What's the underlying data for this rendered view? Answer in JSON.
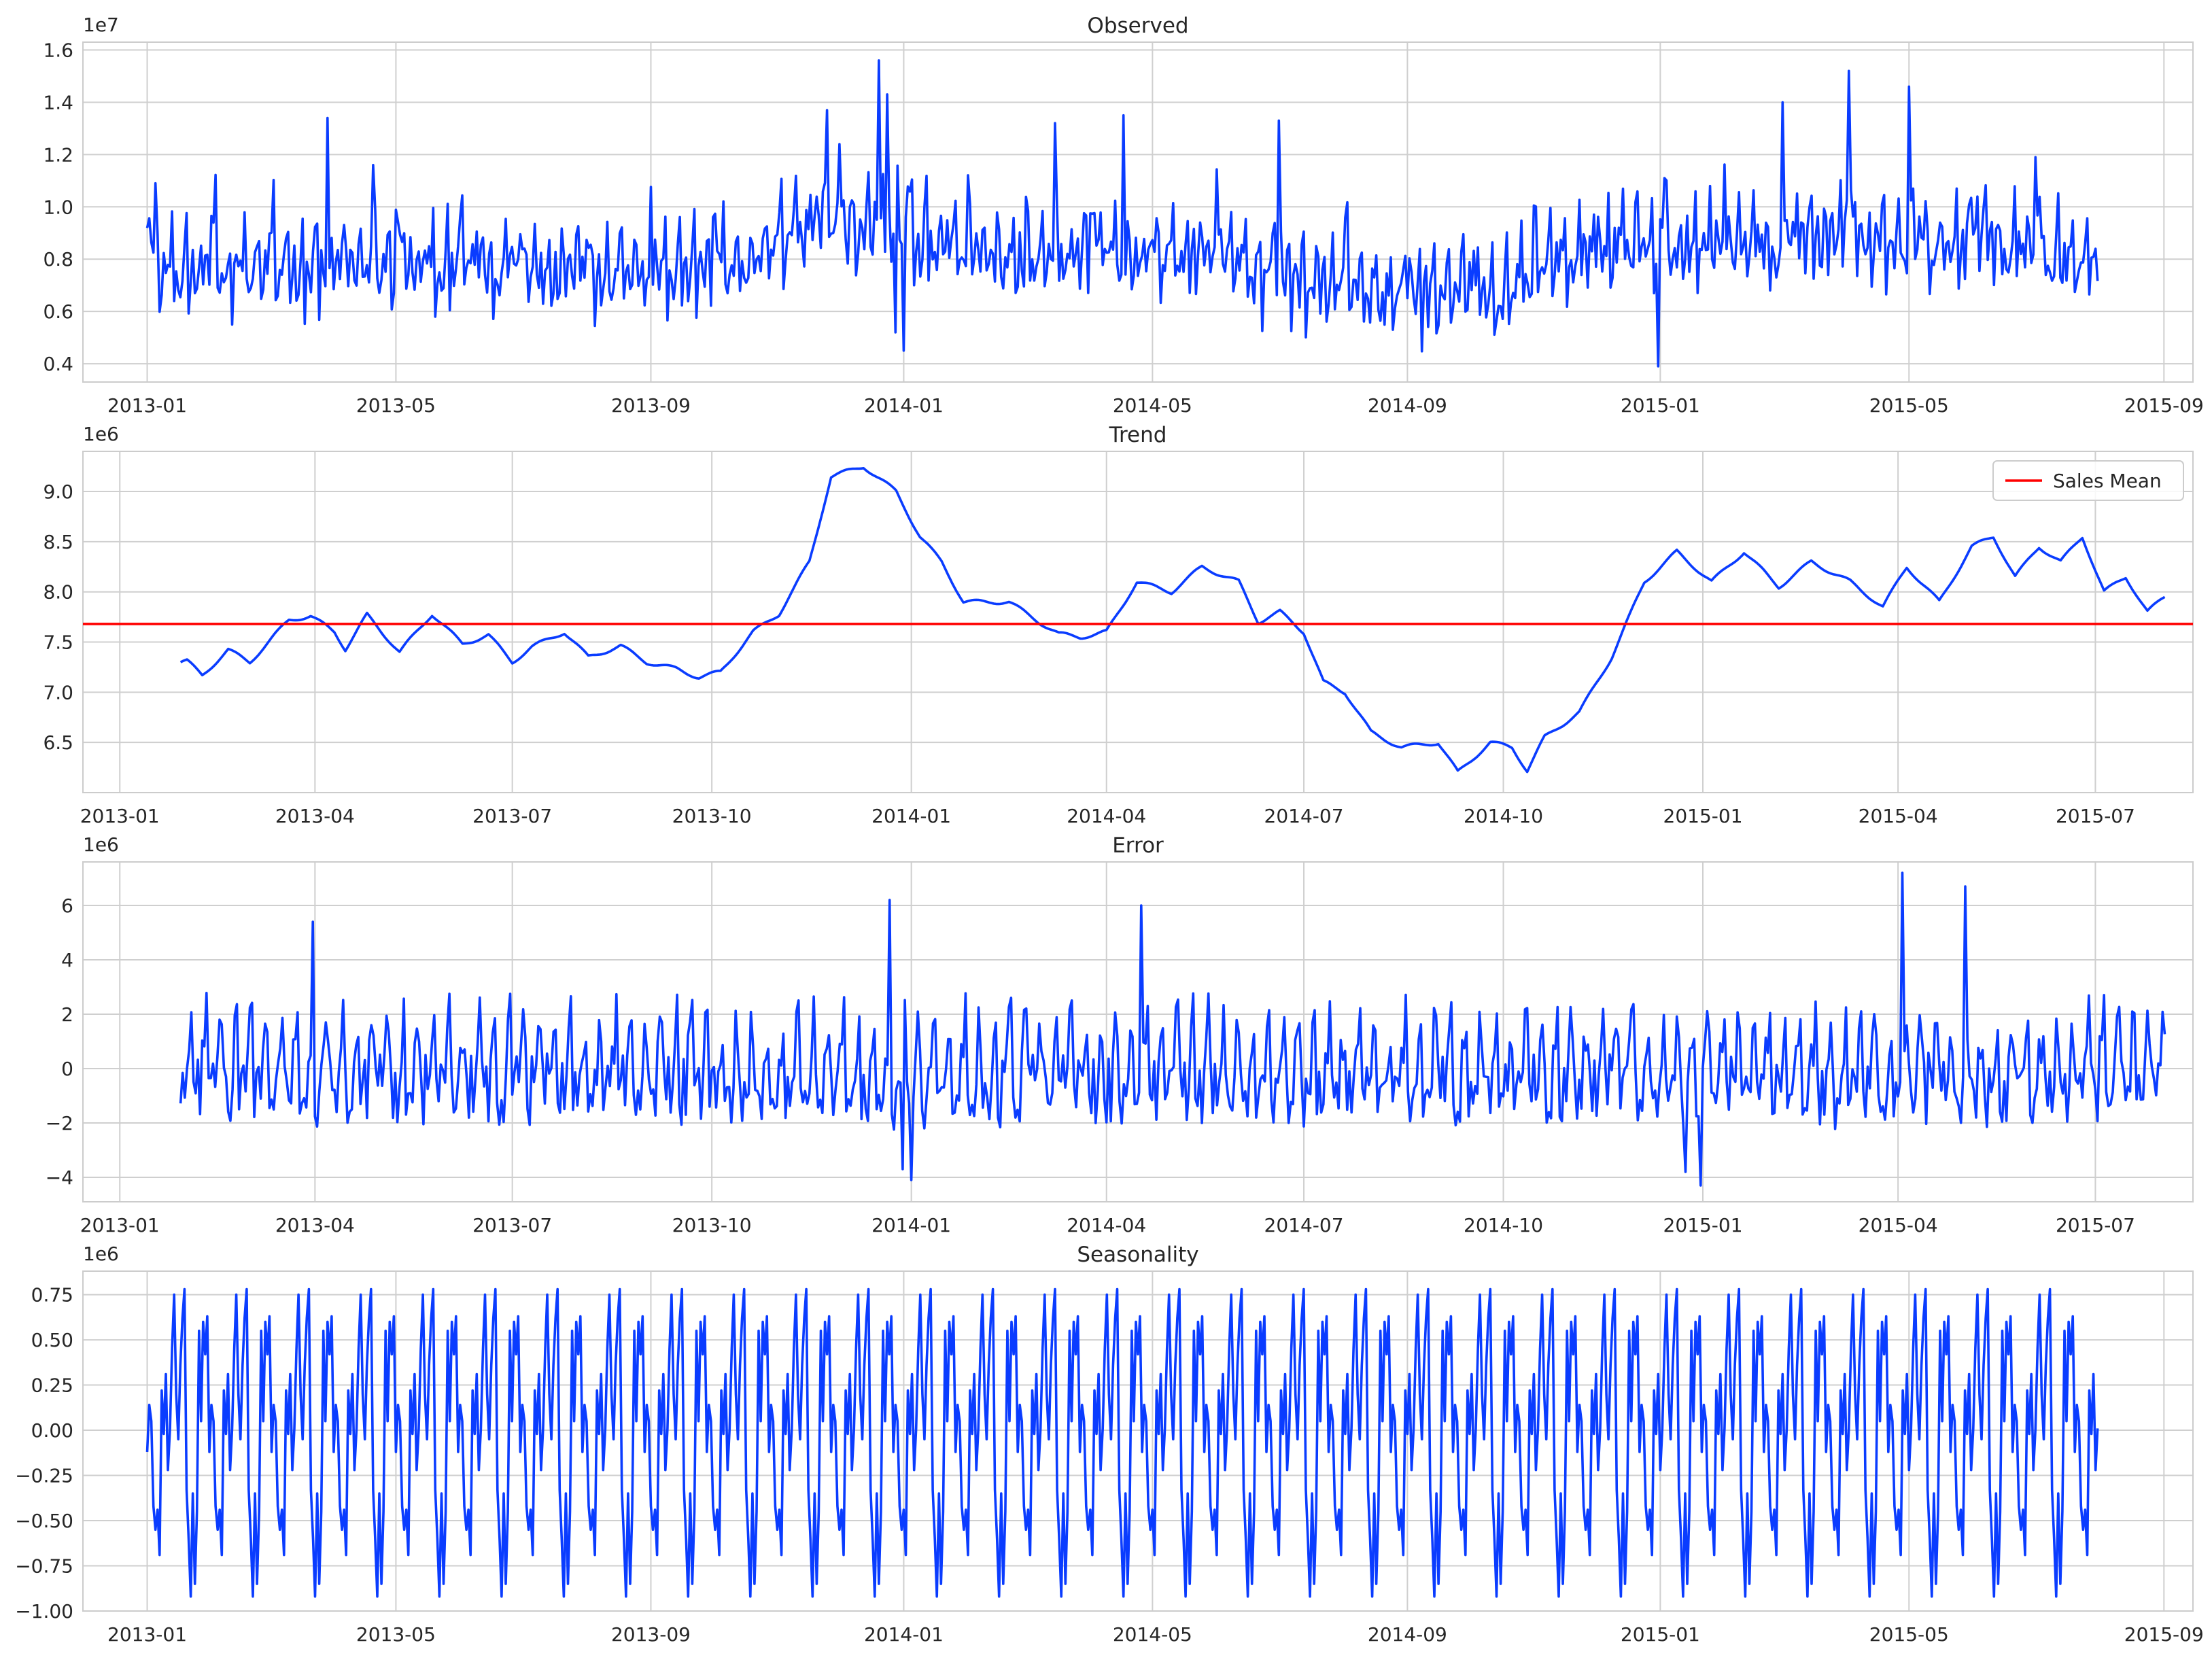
{
  "figure": {
    "line_color": "#0a3cff",
    "mean_color": "#ff0000",
    "grid_color": "#cfcfcf",
    "background": "#ffffff"
  },
  "chart_data": [
    {
      "type": "line",
      "title": "Observed",
      "offset_label": "1e7",
      "x_range": [
        "2012-12-01",
        "2015-09-15"
      ],
      "x_ticks": [
        "2013-01",
        "2013-05",
        "2013-09",
        "2014-01",
        "2014-05",
        "2014-09",
        "2015-01",
        "2015-05",
        "2015-09"
      ],
      "x_tick_labels": [
        "2013-01",
        "2013-05",
        "2013-09",
        "2014-01",
        "2014-05",
        "2014-09",
        "2015-01",
        "2015-05",
        "2015-09"
      ],
      "ylim": [
        0.33,
        1.63
      ],
      "y_ticks": [
        0.4,
        0.6,
        0.8,
        1.0,
        1.2,
        1.4,
        1.6
      ],
      "y_tick_labels": [
        "0.4",
        "0.6",
        "0.8",
        "1.0",
        "1.2",
        "1.4",
        "1.6"
      ],
      "grid": true,
      "series": [
        {
          "start": "2013-01-01",
          "end": "2015-07-31",
          "frequency": "daily",
          "base_mean": 0.76,
          "seasonal_amplitude": 0.17,
          "noise": 0.1,
          "min": 0.39,
          "max": 1.57,
          "anchors": [
            {
              "x": "2013-01-01",
              "y": 0.74
            },
            {
              "x": "2013-06-01",
              "y": 0.76
            },
            {
              "x": "2013-09-01",
              "y": 0.73
            },
            {
              "x": "2013-10-15",
              "y": 0.77
            },
            {
              "x": "2013-11-20",
              "y": 0.91
            },
            {
              "x": "2013-12-15",
              "y": 0.92
            },
            {
              "x": "2014-01-15",
              "y": 0.85
            },
            {
              "x": "2014-02-20",
              "y": 0.78
            },
            {
              "x": "2014-05-01",
              "y": 0.8
            },
            {
              "x": "2014-06-01",
              "y": 0.78
            },
            {
              "x": "2014-07-01",
              "y": 0.7
            },
            {
              "x": "2014-09-01",
              "y": 0.65
            },
            {
              "x": "2014-10-15",
              "y": 0.63
            },
            {
              "x": "2014-11-20",
              "y": 0.8
            },
            {
              "x": "2015-01-01",
              "y": 0.84
            },
            {
              "x": "2015-04-15",
              "y": 0.85
            },
            {
              "x": "2015-07-31",
              "y": 0.8
            }
          ],
          "peaks": [
            {
              "x": "2013-01-05",
              "y": 1.09
            },
            {
              "x": "2013-03-29",
              "y": 1.34
            },
            {
              "x": "2013-04-20",
              "y": 1.16
            },
            {
              "x": "2013-11-25",
              "y": 1.37
            },
            {
              "x": "2013-12-20",
              "y": 1.56
            },
            {
              "x": "2013-12-24",
              "y": 1.43
            },
            {
              "x": "2014-03-15",
              "y": 1.32
            },
            {
              "x": "2014-04-17",
              "y": 1.35
            },
            {
              "x": "2014-07-01",
              "y": 1.33
            },
            {
              "x": "2015-03-01",
              "y": 1.4
            },
            {
              "x": "2015-04-02",
              "y": 1.52
            },
            {
              "x": "2015-05-01",
              "y": 1.46
            },
            {
              "x": "2015-07-01",
              "y": 1.19
            }
          ],
          "troughs": [
            {
              "x": "2013-12-28",
              "y": 0.52
            },
            {
              "x": "2014-01-01",
              "y": 0.45
            },
            {
              "x": "2014-12-31",
              "y": 0.39
            }
          ]
        }
      ]
    },
    {
      "type": "line",
      "title": "Trend",
      "offset_label": "1e6",
      "x_range": [
        "2012-12-15",
        "2015-08-15"
      ],
      "x_ticks": [
        "2013-01",
        "2013-04",
        "2013-07",
        "2013-10",
        "2014-01",
        "2014-04",
        "2014-07",
        "2014-10",
        "2015-01",
        "2015-04",
        "2015-07"
      ],
      "x_tick_labels": [
        "2013-01",
        "2013-04",
        "2013-07",
        "2013-10",
        "2014-01",
        "2014-04",
        "2014-07",
        "2014-10",
        "2015-01",
        "2015-04",
        "2015-07"
      ],
      "ylim": [
        6.0,
        9.4
      ],
      "y_ticks": [
        6.5,
        7.0,
        7.5,
        8.0,
        8.5,
        9.0
      ],
      "y_tick_labels": [
        "6.5",
        "7.0",
        "7.5",
        "8.0",
        "8.5",
        "9.0"
      ],
      "grid": true,
      "legend": {
        "position": "top-right",
        "entries": [
          "Sales Mean"
        ]
      },
      "series": [
        {
          "frequency": "daily",
          "wiggle": 0.06,
          "points": [
            {
              "x": "2013-01-29",
              "y": 7.3
            },
            {
              "x": "2013-02-01",
              "y": 7.31
            },
            {
              "x": "2013-02-08",
              "y": 7.17
            },
            {
              "x": "2013-02-20",
              "y": 7.42
            },
            {
              "x": "2013-03-02",
              "y": 7.3
            },
            {
              "x": "2013-03-20",
              "y": 7.72
            },
            {
              "x": "2013-03-30",
              "y": 7.76
            },
            {
              "x": "2013-04-10",
              "y": 7.6
            },
            {
              "x": "2013-04-15",
              "y": 7.43
            },
            {
              "x": "2013-04-25",
              "y": 7.77
            },
            {
              "x": "2013-05-10",
              "y": 7.4
            },
            {
              "x": "2013-05-25",
              "y": 7.78
            },
            {
              "x": "2013-06-08",
              "y": 7.48
            },
            {
              "x": "2013-06-20",
              "y": 7.57
            },
            {
              "x": "2013-07-01",
              "y": 7.3
            },
            {
              "x": "2013-07-10",
              "y": 7.45
            },
            {
              "x": "2013-07-25",
              "y": 7.6
            },
            {
              "x": "2013-08-05",
              "y": 7.35
            },
            {
              "x": "2013-08-20",
              "y": 7.46
            },
            {
              "x": "2013-09-01",
              "y": 7.3
            },
            {
              "x": "2013-09-15",
              "y": 7.23
            },
            {
              "x": "2013-09-25",
              "y": 7.15
            },
            {
              "x": "2013-10-05",
              "y": 7.2
            },
            {
              "x": "2013-10-20",
              "y": 7.6
            },
            {
              "x": "2013-11-01",
              "y": 7.78
            },
            {
              "x": "2013-11-15",
              "y": 8.3
            },
            {
              "x": "2013-11-25",
              "y": 9.15
            },
            {
              "x": "2013-12-10",
              "y": 9.25
            },
            {
              "x": "2013-12-25",
              "y": 9.0
            },
            {
              "x": "2014-01-05",
              "y": 8.55
            },
            {
              "x": "2014-01-15",
              "y": 8.3
            },
            {
              "x": "2014-01-25",
              "y": 7.9
            },
            {
              "x": "2014-02-15",
              "y": 7.9
            },
            {
              "x": "2014-03-01",
              "y": 7.7
            },
            {
              "x": "2014-03-10",
              "y": 7.58
            },
            {
              "x": "2014-03-20",
              "y": 7.55
            },
            {
              "x": "2014-04-01",
              "y": 7.6
            },
            {
              "x": "2014-04-15",
              "y": 8.1
            },
            {
              "x": "2014-05-01",
              "y": 8.0
            },
            {
              "x": "2014-05-15",
              "y": 8.25
            },
            {
              "x": "2014-06-01",
              "y": 8.1
            },
            {
              "x": "2014-06-10",
              "y": 7.7
            },
            {
              "x": "2014-06-20",
              "y": 7.8
            },
            {
              "x": "2014-07-01",
              "y": 7.6
            },
            {
              "x": "2014-07-10",
              "y": 7.1
            },
            {
              "x": "2014-07-20",
              "y": 7.0
            },
            {
              "x": "2014-08-01",
              "y": 6.6
            },
            {
              "x": "2014-08-15",
              "y": 6.45
            },
            {
              "x": "2014-09-01",
              "y": 6.5
            },
            {
              "x": "2014-09-10",
              "y": 6.2
            },
            {
              "x": "2014-09-25",
              "y": 6.5
            },
            {
              "x": "2014-10-05",
              "y": 6.45
            },
            {
              "x": "2014-10-12",
              "y": 6.22
            },
            {
              "x": "2014-10-20",
              "y": 6.55
            },
            {
              "x": "2014-11-05",
              "y": 6.8
            },
            {
              "x": "2014-11-20",
              "y": 7.35
            },
            {
              "x": "2014-12-05",
              "y": 8.1
            },
            {
              "x": "2014-12-20",
              "y": 8.4
            },
            {
              "x": "2015-01-05",
              "y": 8.1
            },
            {
              "x": "2015-01-20",
              "y": 8.4
            },
            {
              "x": "2015-02-05",
              "y": 8.05
            },
            {
              "x": "2015-02-20",
              "y": 8.3
            },
            {
              "x": "2015-03-10",
              "y": 8.1
            },
            {
              "x": "2015-03-25",
              "y": 7.85
            },
            {
              "x": "2015-04-05",
              "y": 8.25
            },
            {
              "x": "2015-04-20",
              "y": 7.9
            },
            {
              "x": "2015-05-05",
              "y": 8.45
            },
            {
              "x": "2015-05-15",
              "y": 8.55
            },
            {
              "x": "2015-05-25",
              "y": 8.15
            },
            {
              "x": "2015-06-05",
              "y": 8.45
            },
            {
              "x": "2015-06-15",
              "y": 8.3
            },
            {
              "x": "2015-06-25",
              "y": 8.55
            },
            {
              "x": "2015-07-05",
              "y": 8.0
            },
            {
              "x": "2015-07-15",
              "y": 8.15
            },
            {
              "x": "2015-07-25",
              "y": 7.8
            },
            {
              "x": "2015-08-02",
              "y": 7.95
            }
          ]
        }
      ],
      "mean_line": {
        "name": "Sales Mean",
        "y": 7.68
      }
    },
    {
      "type": "line",
      "title": "Error",
      "offset_label": "1e6",
      "x_range": [
        "2012-12-15",
        "2015-08-15"
      ],
      "x_ticks": [
        "2013-01",
        "2013-04",
        "2013-07",
        "2013-10",
        "2014-01",
        "2014-04",
        "2014-07",
        "2014-10",
        "2015-01",
        "2015-04",
        "2015-07"
      ],
      "x_tick_labels": [
        "2013-01",
        "2013-04",
        "2013-07",
        "2013-10",
        "2014-01",
        "2014-04",
        "2014-07",
        "2014-10",
        "2015-01",
        "2015-04",
        "2015-07"
      ],
      "ylim": [
        -4.9,
        7.6
      ],
      "y_ticks": [
        -4,
        -2,
        0,
        2,
        4,
        6
      ],
      "y_tick_labels": [
        "−4",
        "−2",
        "0",
        "2",
        "4",
        "6"
      ],
      "grid": true,
      "series": [
        {
          "start": "2013-01-29",
          "end": "2015-08-02",
          "frequency": "daily",
          "seasonal_amplitude": 2.0,
          "noise": 1.1,
          "min": -4.3,
          "max": 7.2,
          "peaks": [
            {
              "x": "2013-03-31",
              "y": 5.4
            },
            {
              "x": "2013-12-22",
              "y": 6.2
            },
            {
              "x": "2014-04-17",
              "y": 6.0
            },
            {
              "x": "2015-04-03",
              "y": 7.2
            },
            {
              "x": "2015-05-02",
              "y": 6.7
            }
          ],
          "troughs": [
            {
              "x": "2013-12-28",
              "y": -3.7
            },
            {
              "x": "2014-01-01",
              "y": -4.1
            },
            {
              "x": "2014-12-24",
              "y": -3.8
            },
            {
              "x": "2014-12-31",
              "y": -4.3
            }
          ]
        }
      ]
    },
    {
      "type": "line",
      "title": "Seasonality",
      "offset_label": "1e6",
      "x_range": [
        "2012-12-01",
        "2015-09-15"
      ],
      "x_ticks": [
        "2013-01",
        "2013-05",
        "2013-09",
        "2014-01",
        "2014-05",
        "2014-09",
        "2015-01",
        "2015-05",
        "2015-09"
      ],
      "x_tick_labels": [
        "2013-01",
        "2013-05",
        "2013-09",
        "2014-01",
        "2014-05",
        "2014-09",
        "2015-01",
        "2015-05",
        "2015-09"
      ],
      "ylim": [
        -1.0,
        0.88
      ],
      "y_ticks": [
        -1.0,
        -0.75,
        -0.5,
        -0.25,
        0.0,
        0.25,
        0.5,
        0.75
      ],
      "y_tick_labels": [
        "−1.00",
        "−0.75",
        "−0.50",
        "−0.25",
        "0.00",
        "0.25",
        "0.50",
        "0.75"
      ],
      "grid": true,
      "series": [
        {
          "start": "2013-01-01",
          "end": "2015-07-31",
          "frequency": "daily",
          "period_days": 30,
          "min": -0.92,
          "max": 0.79,
          "cycle": [
            -0.12,
            0.14,
            0.05,
            -0.42,
            -0.55,
            -0.44,
            -0.69,
            0.22,
            -0.02,
            0.31,
            -0.22,
            0.01,
            0.45,
            0.75,
            0.2,
            -0.05,
            0.36,
            0.62,
            0.78,
            -0.33,
            -0.6,
            -0.92,
            -0.35,
            -0.85,
            -0.45,
            0.55,
            0.05,
            0.6,
            0.42,
            0.63
          ]
        }
      ]
    }
  ]
}
